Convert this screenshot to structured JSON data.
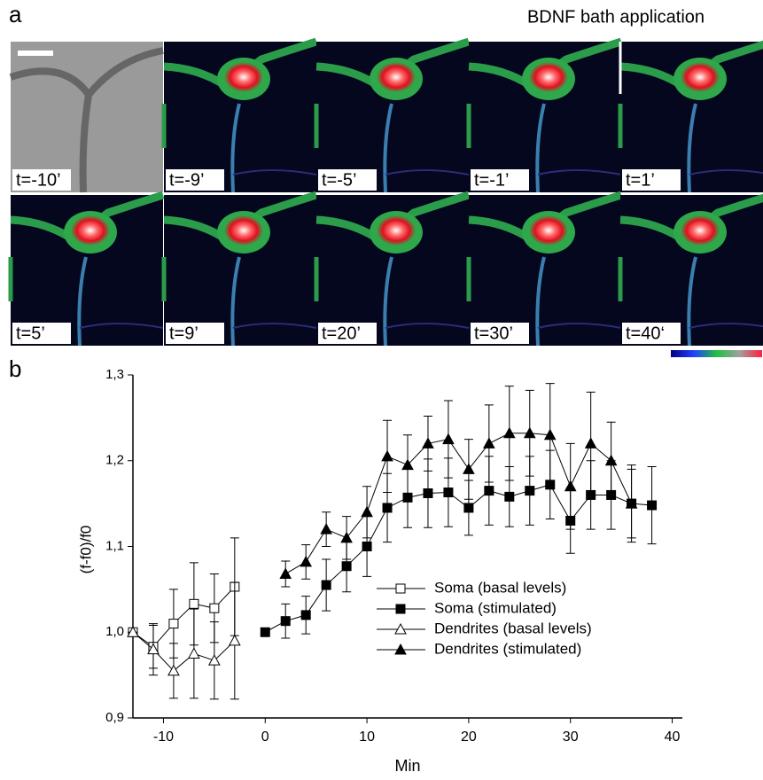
{
  "panel_a": {
    "label": "a",
    "annotation": "BDNF bath application",
    "frames": [
      "t=-10’",
      "t=-9’",
      "t=-5’",
      "t=-1’",
      "t=1’",
      "t=5’",
      "t=9’",
      "t=20’",
      "t=30’",
      "t=40‘"
    ]
  },
  "chart_data": {
    "type": "line",
    "panel_label": "b",
    "ylabel": "(f-f0)/f0",
    "xlabel": "Min",
    "xlim": [
      -13,
      41
    ],
    "ylim": [
      0.9,
      1.3
    ],
    "xticks": [
      -10,
      0,
      10,
      20,
      30,
      40
    ],
    "yticks": [
      {
        "value": 0.9,
        "label": "0,9"
      },
      {
        "value": 1.0,
        "label": "1,0"
      },
      {
        "value": 1.1,
        "label": "1,1"
      },
      {
        "value": 1.2,
        "label": "1,2"
      },
      {
        "value": 1.3,
        "label": "1,3"
      }
    ],
    "color": "#000000",
    "series": [
      {
        "name": "Soma (basal levels)",
        "marker": "square",
        "filled": false,
        "x": [
          -13,
          -11,
          -9,
          -7,
          -5,
          -3
        ],
        "values": [
          1.0,
          0.983,
          1.01,
          1.033,
          1.028,
          1.053
        ],
        "errors": [
          0,
          0.025,
          0.04,
          0.048,
          0.04,
          0.057
        ]
      },
      {
        "name": "Soma (stimulated)",
        "marker": "square",
        "filled": true,
        "x": [
          0,
          2,
          4,
          6,
          8,
          10,
          12,
          14,
          16,
          18,
          20,
          22,
          24,
          26,
          28,
          30,
          32,
          34,
          36,
          38
        ],
        "values": [
          1.0,
          1.013,
          1.02,
          1.055,
          1.077,
          1.1,
          1.145,
          1.157,
          1.162,
          1.163,
          1.145,
          1.165,
          1.158,
          1.165,
          1.172,
          1.13,
          1.16,
          1.16,
          1.15,
          1.148
        ],
        "errors": [
          0,
          0.02,
          0.022,
          0.03,
          0.03,
          0.035,
          0.04,
          0.035,
          0.04,
          0.04,
          0.032,
          0.04,
          0.035,
          0.04,
          0.04,
          0.038,
          0.04,
          0.04,
          0.04,
          0.045
        ]
      },
      {
        "name": "Dendrites (basal levels)",
        "marker": "triangle",
        "filled": false,
        "x": [
          -13,
          -11,
          -9,
          -7,
          -5,
          -3
        ],
        "values": [
          1.0,
          0.98,
          0.955,
          0.975,
          0.967,
          0.99
        ],
        "errors": [
          0,
          0.03,
          0.032,
          0.052,
          0.045,
          0.068
        ]
      },
      {
        "name": "Dendrites (stimulated)",
        "marker": "triangle",
        "filled": true,
        "x": [
          2,
          4,
          6,
          8,
          10,
          12,
          14,
          16,
          18,
          20,
          22,
          24,
          26,
          28,
          30,
          32,
          34,
          36
        ],
        "values": [
          1.068,
          1.082,
          1.12,
          1.11,
          1.14,
          1.205,
          1.195,
          1.22,
          1.225,
          1.19,
          1.22,
          1.232,
          1.232,
          1.23,
          1.17,
          1.22,
          1.2,
          1.15
        ],
        "errors": [
          0.015,
          0.02,
          0.02,
          0.025,
          0.03,
          0.042,
          0.035,
          0.032,
          0.045,
          0.035,
          0.045,
          0.055,
          0.05,
          0.06,
          0.05,
          0.06,
          0.045,
          0.045
        ]
      }
    ]
  }
}
